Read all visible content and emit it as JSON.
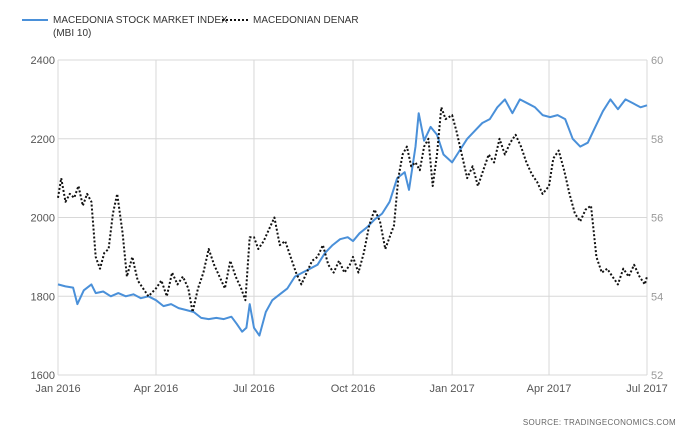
{
  "chart_data": {
    "type": "line",
    "legend": {
      "position": "top-left",
      "items": [
        {
          "series": 0,
          "lines": [
            "MACEDONIA STOCK MARKET INDEX",
            "(MBI 10)"
          ]
        },
        {
          "series": 1,
          "lines": [
            "MACEDONIAN DENAR"
          ]
        }
      ]
    },
    "source": "SOURCE: TRADINGECONOMICS.COM",
    "grid": true,
    "xaxis": {
      "range": [
        "2016-01-01",
        "2017-07-01"
      ],
      "ticks": [
        {
          "date": "2016-01-01",
          "label": "Jan 2016"
        },
        {
          "date": "2016-04-01",
          "label": "Apr 2016"
        },
        {
          "date": "2016-07-01",
          "label": "Jul 2016"
        },
        {
          "date": "2016-10-01",
          "label": "Oct 2016"
        },
        {
          "date": "2017-01-01",
          "label": "Jan 2017"
        },
        {
          "date": "2017-04-01",
          "label": "Apr 2017"
        },
        {
          "date": "2017-07-01",
          "label": "Jul 2017"
        }
      ]
    },
    "yaxis_left": {
      "range": [
        1600,
        2400
      ],
      "ticks": [
        "1600",
        "1800",
        "2000",
        "2200",
        "2400"
      ]
    },
    "yaxis_right": {
      "range": [
        52,
        60
      ],
      "ticks": [
        "52",
        "54",
        "56",
        "58",
        "60"
      ]
    },
    "series": [
      {
        "name": "MACEDONIA STOCK MARKET INDEX (MBI 10)",
        "axis": "left",
        "color": "#4a90d9",
        "style": "solid",
        "points": [
          [
            "2016-01-01",
            1830
          ],
          [
            "2016-01-08",
            1825
          ],
          [
            "2016-01-15",
            1822
          ],
          [
            "2016-01-19",
            1780
          ],
          [
            "2016-01-25",
            1815
          ],
          [
            "2016-02-01",
            1830
          ],
          [
            "2016-02-05",
            1808
          ],
          [
            "2016-02-12",
            1812
          ],
          [
            "2016-02-19",
            1800
          ],
          [
            "2016-02-26",
            1808
          ],
          [
            "2016-03-04",
            1800
          ],
          [
            "2016-03-11",
            1805
          ],
          [
            "2016-03-18",
            1795
          ],
          [
            "2016-03-25",
            1800
          ],
          [
            "2016-04-01",
            1790
          ],
          [
            "2016-04-08",
            1775
          ],
          [
            "2016-04-15",
            1780
          ],
          [
            "2016-04-22",
            1770
          ],
          [
            "2016-04-29",
            1765
          ],
          [
            "2016-05-06",
            1760
          ],
          [
            "2016-05-13",
            1745
          ],
          [
            "2016-05-20",
            1742
          ],
          [
            "2016-05-27",
            1745
          ],
          [
            "2016-06-03",
            1742
          ],
          [
            "2016-06-10",
            1748
          ],
          [
            "2016-06-15",
            1730
          ],
          [
            "2016-06-20",
            1710
          ],
          [
            "2016-06-24",
            1720
          ],
          [
            "2016-06-27",
            1780
          ],
          [
            "2016-07-01",
            1720
          ],
          [
            "2016-07-06",
            1700
          ],
          [
            "2016-07-12",
            1760
          ],
          [
            "2016-07-18",
            1790
          ],
          [
            "2016-07-25",
            1805
          ],
          [
            "2016-08-01",
            1820
          ],
          [
            "2016-08-08",
            1850
          ],
          [
            "2016-08-15",
            1860
          ],
          [
            "2016-08-22",
            1870
          ],
          [
            "2016-08-29",
            1880
          ],
          [
            "2016-09-05",
            1910
          ],
          [
            "2016-09-12",
            1930
          ],
          [
            "2016-09-19",
            1945
          ],
          [
            "2016-09-26",
            1950
          ],
          [
            "2016-10-01",
            1940
          ],
          [
            "2016-10-07",
            1960
          ],
          [
            "2016-10-14",
            1975
          ],
          [
            "2016-10-21",
            1995
          ],
          [
            "2016-10-28",
            2010
          ],
          [
            "2016-11-04",
            2040
          ],
          [
            "2016-11-11",
            2100
          ],
          [
            "2016-11-18",
            2115
          ],
          [
            "2016-11-22",
            2070
          ],
          [
            "2016-11-28",
            2180
          ],
          [
            "2016-12-01",
            2265
          ],
          [
            "2016-12-06",
            2195
          ],
          [
            "2016-12-12",
            2230
          ],
          [
            "2016-12-18",
            2210
          ],
          [
            "2016-12-24",
            2160
          ],
          [
            "2017-01-01",
            2140
          ],
          [
            "2017-01-08",
            2170
          ],
          [
            "2017-01-15",
            2200
          ],
          [
            "2017-01-22",
            2220
          ],
          [
            "2017-01-29",
            2240
          ],
          [
            "2017-02-05",
            2250
          ],
          [
            "2017-02-12",
            2280
          ],
          [
            "2017-02-19",
            2300
          ],
          [
            "2017-02-26",
            2265
          ],
          [
            "2017-03-05",
            2300
          ],
          [
            "2017-03-12",
            2290
          ],
          [
            "2017-03-19",
            2280
          ],
          [
            "2017-03-26",
            2260
          ],
          [
            "2017-04-02",
            2255
          ],
          [
            "2017-04-09",
            2260
          ],
          [
            "2017-04-16",
            2250
          ],
          [
            "2017-04-23",
            2200
          ],
          [
            "2017-04-30",
            2180
          ],
          [
            "2017-05-07",
            2190
          ],
          [
            "2017-05-14",
            2230
          ],
          [
            "2017-05-21",
            2270
          ],
          [
            "2017-05-28",
            2300
          ],
          [
            "2017-06-04",
            2275
          ],
          [
            "2017-06-11",
            2300
          ],
          [
            "2017-06-18",
            2290
          ],
          [
            "2017-06-25",
            2280
          ],
          [
            "2017-07-01",
            2285
          ]
        ]
      },
      {
        "name": "MACEDONIAN DENAR",
        "axis": "right",
        "color": "#111111",
        "style": "dotted",
        "points": [
          [
            "2016-01-01",
            56.5
          ],
          [
            "2016-01-04",
            57.0
          ],
          [
            "2016-01-08",
            56.4
          ],
          [
            "2016-01-12",
            56.6
          ],
          [
            "2016-01-16",
            56.5
          ],
          [
            "2016-01-20",
            56.8
          ],
          [
            "2016-01-24",
            56.3
          ],
          [
            "2016-01-28",
            56.6
          ],
          [
            "2016-02-01",
            56.4
          ],
          [
            "2016-02-05",
            55.0
          ],
          [
            "2016-02-09",
            54.7
          ],
          [
            "2016-02-13",
            55.1
          ],
          [
            "2016-02-17",
            55.2
          ],
          [
            "2016-02-21",
            56.1
          ],
          [
            "2016-02-25",
            56.6
          ],
          [
            "2016-03-01",
            55.6
          ],
          [
            "2016-03-05",
            54.5
          ],
          [
            "2016-03-10",
            55.0
          ],
          [
            "2016-03-15",
            54.4
          ],
          [
            "2016-03-20",
            54.2
          ],
          [
            "2016-03-25",
            54.0
          ],
          [
            "2016-04-01",
            54.2
          ],
          [
            "2016-04-06",
            54.4
          ],
          [
            "2016-04-11",
            54.0
          ],
          [
            "2016-04-16",
            54.6
          ],
          [
            "2016-04-21",
            54.3
          ],
          [
            "2016-04-26",
            54.5
          ],
          [
            "2016-05-01",
            54.2
          ],
          [
            "2016-05-05",
            53.6
          ],
          [
            "2016-05-10",
            54.2
          ],
          [
            "2016-05-15",
            54.6
          ],
          [
            "2016-05-20",
            55.2
          ],
          [
            "2016-05-25",
            54.8
          ],
          [
            "2016-05-30",
            54.5
          ],
          [
            "2016-06-04",
            54.2
          ],
          [
            "2016-06-09",
            54.9
          ],
          [
            "2016-06-14",
            54.5
          ],
          [
            "2016-06-19",
            54.2
          ],
          [
            "2016-06-23",
            53.9
          ],
          [
            "2016-06-27",
            55.5
          ],
          [
            "2016-07-01",
            55.5
          ],
          [
            "2016-07-05",
            55.2
          ],
          [
            "2016-07-10",
            55.4
          ],
          [
            "2016-07-15",
            55.7
          ],
          [
            "2016-07-20",
            56.0
          ],
          [
            "2016-07-25",
            55.3
          ],
          [
            "2016-07-30",
            55.4
          ],
          [
            "2016-08-04",
            55.0
          ],
          [
            "2016-08-09",
            54.6
          ],
          [
            "2016-08-14",
            54.3
          ],
          [
            "2016-08-19",
            54.6
          ],
          [
            "2016-08-24",
            54.9
          ],
          [
            "2016-08-29",
            55.0
          ],
          [
            "2016-09-03",
            55.3
          ],
          [
            "2016-09-08",
            54.8
          ],
          [
            "2016-09-13",
            54.6
          ],
          [
            "2016-09-18",
            54.9
          ],
          [
            "2016-09-23",
            54.6
          ],
          [
            "2016-09-28",
            54.8
          ],
          [
            "2016-10-01",
            55.0
          ],
          [
            "2016-10-06",
            54.6
          ],
          [
            "2016-10-11",
            55.1
          ],
          [
            "2016-10-16",
            55.8
          ],
          [
            "2016-10-21",
            56.2
          ],
          [
            "2016-10-26",
            55.9
          ],
          [
            "2016-10-31",
            55.2
          ],
          [
            "2016-11-04",
            55.5
          ],
          [
            "2016-11-08",
            55.8
          ],
          [
            "2016-11-12",
            57.0
          ],
          [
            "2016-11-16",
            57.6
          ],
          [
            "2016-11-20",
            57.8
          ],
          [
            "2016-11-24",
            57.3
          ],
          [
            "2016-11-28",
            57.4
          ],
          [
            "2016-12-02",
            57.2
          ],
          [
            "2016-12-06",
            57.8
          ],
          [
            "2016-12-10",
            58.0
          ],
          [
            "2016-12-14",
            56.8
          ],
          [
            "2016-12-18",
            57.6
          ],
          [
            "2016-12-22",
            58.8
          ],
          [
            "2016-12-26",
            58.5
          ],
          [
            "2017-01-01",
            58.6
          ],
          [
            "2017-01-05",
            58.2
          ],
          [
            "2017-01-10",
            57.6
          ],
          [
            "2017-01-15",
            57.0
          ],
          [
            "2017-01-20",
            57.3
          ],
          [
            "2017-01-25",
            56.8
          ],
          [
            "2017-01-30",
            57.2
          ],
          [
            "2017-02-04",
            57.6
          ],
          [
            "2017-02-09",
            57.4
          ],
          [
            "2017-02-14",
            58.0
          ],
          [
            "2017-02-19",
            57.6
          ],
          [
            "2017-02-24",
            57.9
          ],
          [
            "2017-03-01",
            58.1
          ],
          [
            "2017-03-06",
            57.8
          ],
          [
            "2017-03-11",
            57.4
          ],
          [
            "2017-03-16",
            57.1
          ],
          [
            "2017-03-21",
            56.9
          ],
          [
            "2017-03-26",
            56.6
          ],
          [
            "2017-04-01",
            56.8
          ],
          [
            "2017-04-05",
            57.5
          ],
          [
            "2017-04-10",
            57.7
          ],
          [
            "2017-04-15",
            57.2
          ],
          [
            "2017-04-20",
            56.6
          ],
          [
            "2017-04-25",
            56.1
          ],
          [
            "2017-04-30",
            55.9
          ],
          [
            "2017-05-05",
            56.2
          ],
          [
            "2017-05-10",
            56.3
          ],
          [
            "2017-05-15",
            55.0
          ],
          [
            "2017-05-20",
            54.6
          ],
          [
            "2017-05-25",
            54.7
          ],
          [
            "2017-05-30",
            54.5
          ],
          [
            "2017-06-04",
            54.3
          ],
          [
            "2017-06-09",
            54.7
          ],
          [
            "2017-06-14",
            54.5
          ],
          [
            "2017-06-19",
            54.8
          ],
          [
            "2017-06-24",
            54.5
          ],
          [
            "2017-06-29",
            54.3
          ],
          [
            "2017-07-01",
            54.5
          ]
        ]
      }
    ]
  }
}
